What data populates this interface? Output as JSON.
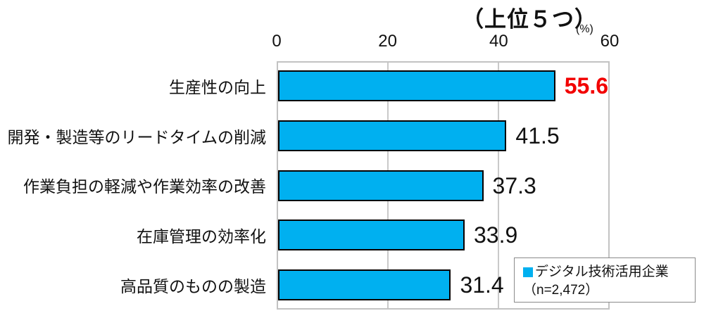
{
  "title": "（上位５つ）",
  "unit_label": "(%)",
  "chart_data": {
    "type": "bar",
    "orientation": "horizontal",
    "title": "（上位５つ）",
    "xlabel_unit": "(%)",
    "xlim": [
      0,
      60
    ],
    "xticks": [
      0,
      20,
      40,
      60
    ],
    "grid": true,
    "categories": [
      "生産性の向上",
      "開発・製造等のリードタイムの削減",
      "作業負担の軽減や作業効率の改善",
      "在庫管理の効率化",
      "高品質のものの製造"
    ],
    "values": [
      55.6,
      41.5,
      37.3,
      33.9,
      31.4
    ],
    "emphasized_value_index": 0,
    "bar_fill_color": "#00B0F0",
    "bar_border_color": "#000000",
    "value_label_color": "#111111",
    "emphasized_value_color": "#F20000",
    "legend_position": "bottom-right-inside"
  },
  "legend": {
    "marker_color": "#00B0F0",
    "series_label": "デジタル技術活用企業",
    "n_label": "（n=2,472）"
  }
}
